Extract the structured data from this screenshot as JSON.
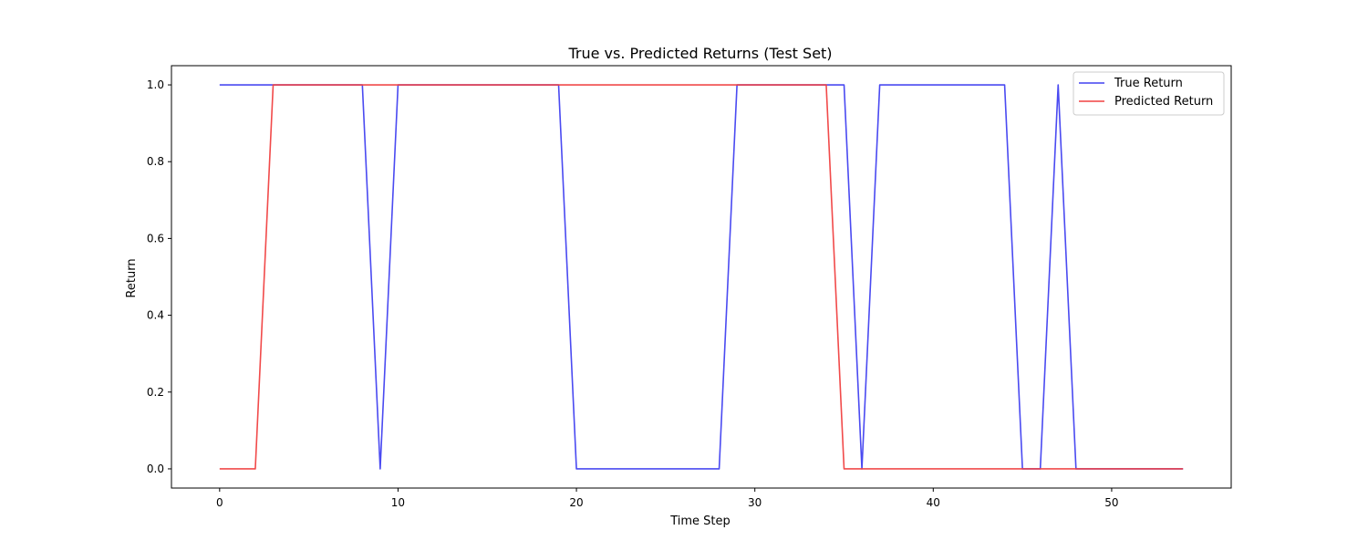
{
  "chart_data": {
    "type": "line",
    "title": "True vs. Predicted Returns (Test Set)",
    "xlabel": "Time Step",
    "ylabel": "Return",
    "xlim": [
      -2.7,
      56.7
    ],
    "ylim": [
      -0.05,
      1.05
    ],
    "x_ticks": [
      0,
      10,
      20,
      30,
      40,
      50
    ],
    "x_tick_labels": [
      "0",
      "10",
      "20",
      "30",
      "40",
      "50"
    ],
    "y_ticks": [
      0.0,
      0.2,
      0.4,
      0.6,
      0.8,
      1.0
    ],
    "y_tick_labels": [
      "0.0",
      "0.2",
      "0.4",
      "0.6",
      "0.8",
      "1.0"
    ],
    "grid": false,
    "legend_position": "top-right",
    "x": [
      0,
      1,
      2,
      3,
      4,
      5,
      6,
      7,
      8,
      9,
      10,
      11,
      12,
      13,
      14,
      15,
      16,
      17,
      18,
      19,
      20,
      21,
      22,
      23,
      24,
      25,
      26,
      27,
      28,
      29,
      30,
      31,
      32,
      33,
      34,
      35,
      36,
      37,
      38,
      39,
      40,
      41,
      42,
      43,
      44,
      45,
      46,
      47,
      48,
      49,
      50,
      51,
      52,
      53,
      54
    ],
    "series": [
      {
        "name": "True Return",
        "color": "#4040f0",
        "values": [
          1,
          1,
          1,
          1,
          1,
          1,
          1,
          1,
          1,
          0,
          1,
          1,
          1,
          1,
          1,
          1,
          1,
          1,
          1,
          1,
          0,
          0,
          0,
          0,
          0,
          0,
          0,
          0,
          0,
          1,
          1,
          1,
          1,
          1,
          1,
          1,
          0,
          1,
          1,
          1,
          1,
          1,
          1,
          1,
          1,
          0,
          0,
          1,
          0,
          0,
          0,
          0,
          0,
          0,
          0
        ]
      },
      {
        "name": "Predicted Return",
        "color": "#f04040",
        "values": [
          0,
          0,
          0,
          1,
          1,
          1,
          1,
          1,
          1,
          1,
          1,
          1,
          1,
          1,
          1,
          1,
          1,
          1,
          1,
          1,
          1,
          1,
          1,
          1,
          1,
          1,
          1,
          1,
          1,
          1,
          1,
          1,
          1,
          1,
          1,
          0,
          0,
          0,
          0,
          0,
          0,
          0,
          0,
          0,
          0,
          0,
          0,
          0,
          0,
          0,
          0,
          0,
          0,
          0,
          0
        ]
      }
    ]
  }
}
